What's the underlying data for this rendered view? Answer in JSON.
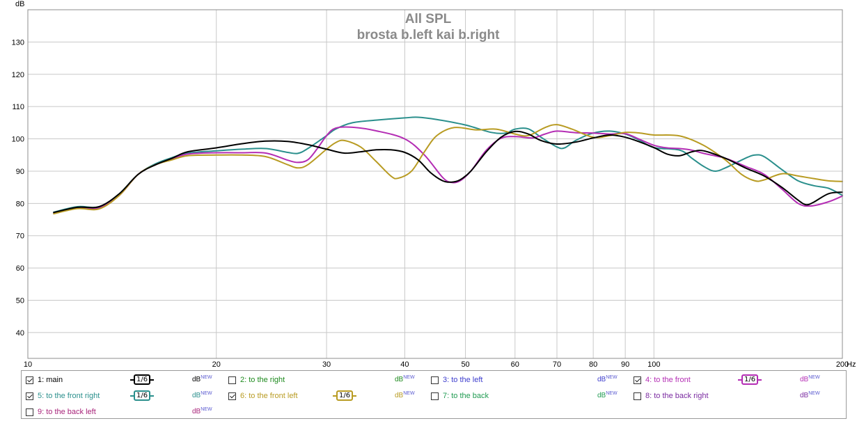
{
  "chart_data": {
    "type": "line",
    "title": "All SPL",
    "subtitle": "brosta  b.left kai b.right",
    "ylabel": "dB",
    "xlabel_unit": "Hz",
    "xscale": "log",
    "xlim": [
      10,
      200
    ],
    "ylim": [
      32,
      140
    ],
    "grid": true,
    "x_ticks": [
      {
        "value": 10,
        "label": "10"
      },
      {
        "value": 20,
        "label": "20"
      },
      {
        "value": 30,
        "label": "30"
      },
      {
        "value": 40,
        "label": "40"
      },
      {
        "value": 50,
        "label": "50"
      },
      {
        "value": 60,
        "label": "60"
      },
      {
        "value": 70,
        "label": "70"
      },
      {
        "value": 80,
        "label": "80"
      },
      {
        "value": 90,
        "label": "90"
      },
      {
        "value": 100,
        "label": "100"
      },
      {
        "value": 200,
        "label": "200"
      }
    ],
    "y_ticks": [
      {
        "value": 40,
        "label": "40"
      },
      {
        "value": 50,
        "label": "50"
      },
      {
        "value": 60,
        "label": "60"
      },
      {
        "value": 70,
        "label": "70"
      },
      {
        "value": 80,
        "label": "80"
      },
      {
        "value": 90,
        "label": "90"
      },
      {
        "value": 100,
        "label": "100"
      },
      {
        "value": 110,
        "label": "110"
      },
      {
        "value": 120,
        "label": "120"
      },
      {
        "value": 130,
        "label": "130"
      }
    ],
    "series": [
      {
        "name": "1: main",
        "color": "#000000",
        "points": [
          [
            11.0,
            77.2
          ],
          [
            12.0,
            78.8
          ],
          [
            13.0,
            79.0
          ],
          [
            14.0,
            83.0
          ],
          [
            15.0,
            89.0
          ],
          [
            16.0,
            92.0
          ],
          [
            17.0,
            94.0
          ],
          [
            18.0,
            96.0
          ],
          [
            20.0,
            97.2
          ],
          [
            22.0,
            98.5
          ],
          [
            24.0,
            99.3
          ],
          [
            26.0,
            99.2
          ],
          [
            28.0,
            98.2
          ],
          [
            30.0,
            96.8
          ],
          [
            32.0,
            95.6
          ],
          [
            34.0,
            96.0
          ],
          [
            36.0,
            96.6
          ],
          [
            38.0,
            96.6
          ],
          [
            40.0,
            95.8
          ],
          [
            42.0,
            93.5
          ],
          [
            44.0,
            89.5
          ],
          [
            46.0,
            87.0
          ],
          [
            47.5,
            86.6
          ],
          [
            49.0,
            87.3
          ],
          [
            51.0,
            90.0
          ],
          [
            54.0,
            96.0
          ],
          [
            57.0,
            100.5
          ],
          [
            60.0,
            102.3
          ],
          [
            63.0,
            101.5
          ],
          [
            66.0,
            99.5
          ],
          [
            70.0,
            98.4
          ],
          [
            75.0,
            99.0
          ],
          [
            80.0,
            100.3
          ],
          [
            85.0,
            101.2
          ],
          [
            90.0,
            100.5
          ],
          [
            95.0,
            99.0
          ],
          [
            100.0,
            97.3
          ],
          [
            105.0,
            95.3
          ],
          [
            110.0,
            94.8
          ],
          [
            115.0,
            96.0
          ],
          [
            120.0,
            96.3
          ],
          [
            130.0,
            94.0
          ],
          [
            140.0,
            91.0
          ],
          [
            150.0,
            88.5
          ],
          [
            160.0,
            85.0
          ],
          [
            170.0,
            81.0
          ],
          [
            175.0,
            79.6
          ],
          [
            180.0,
            80.4
          ],
          [
            190.0,
            83.0
          ],
          [
            200.0,
            83.5
          ]
        ]
      },
      {
        "name": "4: to the front",
        "color": "#b42db4",
        "points": [
          [
            11.0,
            77.0
          ],
          [
            12.0,
            78.5
          ],
          [
            13.0,
            78.6
          ],
          [
            14.0,
            82.5
          ],
          [
            15.0,
            89.0
          ],
          [
            16.0,
            92.0
          ],
          [
            17.0,
            93.8
          ],
          [
            18.0,
            95.3
          ],
          [
            20.0,
            95.7
          ],
          [
            22.0,
            95.7
          ],
          [
            24.0,
            95.6
          ],
          [
            26.0,
            93.4
          ],
          [
            27.0,
            92.7
          ],
          [
            28.0,
            93.5
          ],
          [
            29.0,
            97.0
          ],
          [
            30.0,
            101.0
          ],
          [
            31.0,
            103.3
          ],
          [
            33.0,
            103.6
          ],
          [
            36.0,
            102.5
          ],
          [
            40.0,
            100.0
          ],
          [
            43.0,
            95.0
          ],
          [
            46.0,
            88.0
          ],
          [
            47.5,
            86.5
          ],
          [
            49.0,
            87.0
          ],
          [
            51.0,
            90.0
          ],
          [
            54.0,
            96.5
          ],
          [
            57.0,
            100.2
          ],
          [
            60.0,
            100.7
          ],
          [
            64.0,
            100.3
          ],
          [
            67.0,
            101.5
          ],
          [
            70.0,
            102.4
          ],
          [
            75.0,
            101.9
          ],
          [
            80.0,
            101.8
          ],
          [
            85.0,
            101.5
          ],
          [
            90.0,
            101.6
          ],
          [
            95.0,
            99.8
          ],
          [
            100.0,
            98.0
          ],
          [
            105.0,
            97.2
          ],
          [
            110.0,
            97.0
          ],
          [
            115.0,
            96.5
          ],
          [
            120.0,
            95.5
          ],
          [
            130.0,
            94.0
          ],
          [
            140.0,
            91.5
          ],
          [
            150.0,
            89.0
          ],
          [
            160.0,
            84.5
          ],
          [
            170.0,
            80.0
          ],
          [
            178.0,
            79.2
          ],
          [
            190.0,
            80.5
          ],
          [
            200.0,
            82.3
          ]
        ]
      },
      {
        "name": "5: to the front right",
        "color": "#2a8f8c",
        "points": [
          [
            11.0,
            77.3
          ],
          [
            12.0,
            79.0
          ],
          [
            13.0,
            79.0
          ],
          [
            14.0,
            83.0
          ],
          [
            15.0,
            89.0
          ],
          [
            16.0,
            92.3
          ],
          [
            17.0,
            94.2
          ],
          [
            18.0,
            95.6
          ],
          [
            20.0,
            96.3
          ],
          [
            22.0,
            96.8
          ],
          [
            24.0,
            97.0
          ],
          [
            26.0,
            95.8
          ],
          [
            27.0,
            95.5
          ],
          [
            28.0,
            97.0
          ],
          [
            30.0,
            101.0
          ],
          [
            31.0,
            103.0
          ],
          [
            33.0,
            105.0
          ],
          [
            36.0,
            105.8
          ],
          [
            40.0,
            106.5
          ],
          [
            42.0,
            106.7
          ],
          [
            45.0,
            106.0
          ],
          [
            50.0,
            104.3
          ],
          [
            55.0,
            102.0
          ],
          [
            58.0,
            101.8
          ],
          [
            60.0,
            103.0
          ],
          [
            63.0,
            103.1
          ],
          [
            66.0,
            100.5
          ],
          [
            70.0,
            97.5
          ],
          [
            72.0,
            97.2
          ],
          [
            75.0,
            99.5
          ],
          [
            80.0,
            101.8
          ],
          [
            85.0,
            102.4
          ],
          [
            90.0,
            101.5
          ],
          [
            95.0,
            99.5
          ],
          [
            100.0,
            97.3
          ],
          [
            110.0,
            96.5
          ],
          [
            115.0,
            94.0
          ],
          [
            120.0,
            91.5
          ],
          [
            125.0,
            90.0
          ],
          [
            130.0,
            91.0
          ],
          [
            140.0,
            94.0
          ],
          [
            145.0,
            95.0
          ],
          [
            150.0,
            94.5
          ],
          [
            160.0,
            90.5
          ],
          [
            170.0,
            87.0
          ],
          [
            180.0,
            85.5
          ],
          [
            190.0,
            84.7
          ],
          [
            200.0,
            82.5
          ]
        ]
      },
      {
        "name": "6: to the front left",
        "color": "#b89b22",
        "points": [
          [
            11.0,
            76.8
          ],
          [
            12.0,
            78.4
          ],
          [
            13.0,
            78.3
          ],
          [
            14.0,
            82.5
          ],
          [
            15.0,
            89.0
          ],
          [
            16.0,
            92.0
          ],
          [
            17.0,
            93.5
          ],
          [
            18.0,
            94.8
          ],
          [
            20.0,
            95.0
          ],
          [
            22.0,
            95.0
          ],
          [
            24.0,
            94.5
          ],
          [
            26.0,
            92.0
          ],
          [
            27.0,
            91.0
          ],
          [
            28.0,
            92.0
          ],
          [
            30.0,
            96.8
          ],
          [
            31.0,
            98.8
          ],
          [
            32.0,
            99.5
          ],
          [
            34.0,
            97.5
          ],
          [
            36.0,
            93.0
          ],
          [
            38.0,
            88.5
          ],
          [
            39.0,
            87.8
          ],
          [
            41.0,
            90.0
          ],
          [
            43.0,
            96.0
          ],
          [
            45.0,
            101.0
          ],
          [
            48.0,
            103.5
          ],
          [
            52.0,
            102.8
          ],
          [
            56.0,
            103.0
          ],
          [
            60.0,
            101.5
          ],
          [
            63.0,
            101.0
          ],
          [
            67.0,
            103.5
          ],
          [
            70.0,
            104.4
          ],
          [
            74.0,
            103.0
          ],
          [
            80.0,
            100.5
          ],
          [
            85.0,
            101.0
          ],
          [
            90.0,
            102.0
          ],
          [
            95.0,
            101.8
          ],
          [
            100.0,
            101.2
          ],
          [
            110.0,
            100.9
          ],
          [
            120.0,
            98.0
          ],
          [
            130.0,
            93.5
          ],
          [
            138.0,
            89.0
          ],
          [
            145.0,
            87.0
          ],
          [
            150.0,
            87.3
          ],
          [
            160.0,
            89.2
          ],
          [
            170.0,
            88.5
          ],
          [
            180.0,
            87.7
          ],
          [
            190.0,
            87.0
          ],
          [
            200.0,
            86.8
          ]
        ]
      }
    ]
  },
  "legend": {
    "items": [
      {
        "label": "1: main",
        "checked": true,
        "color": "#000000",
        "smoothing": "1/6",
        "show_badge": true,
        "db": "dB",
        "db_sup": "NEW"
      },
      {
        "label": "2: to the right",
        "checked": false,
        "color": "#1e8a1e",
        "smoothing": "",
        "show_badge": false,
        "db": "dB",
        "db_sup": "NEW"
      },
      {
        "label": "3: to the left",
        "checked": false,
        "color": "#3c3ccd",
        "smoothing": "",
        "show_badge": false,
        "db": "dB",
        "db_sup": "NEW"
      },
      {
        "label": "4: to the front",
        "checked": true,
        "color": "#b42db4",
        "smoothing": "1/6",
        "show_badge": true,
        "db": "dB",
        "db_sup": "NEW"
      },
      {
        "label": "5: to the front right",
        "checked": true,
        "color": "#2a8f8c",
        "smoothing": "1/6",
        "show_badge": true,
        "db": "dB",
        "db_sup": "NEW"
      },
      {
        "label": "6: to the front left",
        "checked": true,
        "color": "#b89b22",
        "smoothing": "1/6",
        "show_badge": true,
        "db": "dB",
        "db_sup": "NEW"
      },
      {
        "label": "7: to the back",
        "checked": false,
        "color": "#1e9a50",
        "smoothing": "",
        "show_badge": false,
        "db": "dB",
        "db_sup": "NEW"
      },
      {
        "label": "8: to the back right",
        "checked": false,
        "color": "#7a2aa0",
        "smoothing": "",
        "show_badge": false,
        "db": "dB",
        "db_sup": "NEW"
      },
      {
        "label": "9: to the back left",
        "checked": false,
        "color": "#a8247a",
        "smoothing": "",
        "show_badge": false,
        "db": "dB",
        "db_sup": "NEW"
      }
    ]
  }
}
